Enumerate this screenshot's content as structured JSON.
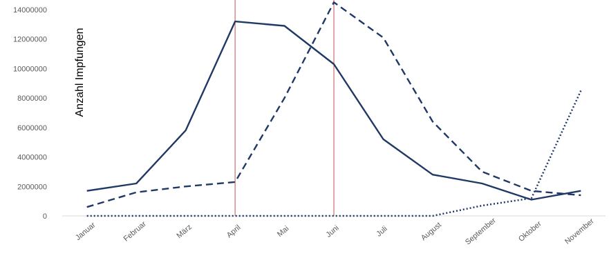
{
  "chart_data": {
    "type": "line",
    "title": "",
    "xlabel": "",
    "ylabel": "Anzahl Impfungen",
    "categories": [
      "Januar",
      "Februar",
      "März",
      "April",
      "Mai",
      "Juni",
      "Juli",
      "August",
      "September",
      "Oktober",
      "November"
    ],
    "ylim": [
      0,
      14000000
    ],
    "yticks": [
      "0",
      "2000000",
      "4000000",
      "6000000",
      "8000000",
      "10000000",
      "12000000",
      "14000000"
    ],
    "grid": false,
    "legend": "none",
    "series": [
      {
        "style": "solid",
        "color": "#1f3864",
        "values": [
          1700000,
          2200000,
          5800000,
          13200000,
          12900000,
          10300000,
          5200000,
          2800000,
          2200000,
          1100000,
          1700000
        ]
      },
      {
        "style": "dashed",
        "color": "#1f3864",
        "values": [
          600000,
          1600000,
          2000000,
          2300000,
          8000000,
          14500000,
          12100000,
          6400000,
          3000000,
          1700000,
          1400000
        ]
      },
      {
        "style": "dotted",
        "color": "#1f3864",
        "values": [
          0,
          0,
          0,
          0,
          0,
          0,
          0,
          0,
          700000,
          1200000,
          8500000
        ]
      }
    ],
    "vertical_markers": [
      {
        "category": "April",
        "color": "#c0504d"
      },
      {
        "category": "Juni",
        "color": "#c0504d"
      }
    ]
  }
}
